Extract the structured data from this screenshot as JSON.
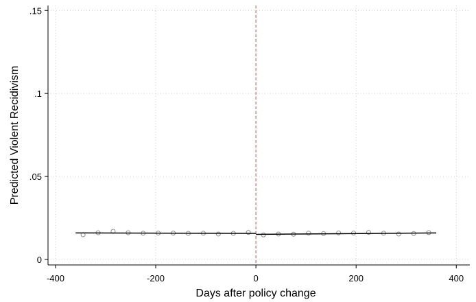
{
  "chart_data": {
    "type": "scatter",
    "x_label": "Days after policy change",
    "y_label": "Predicted Violent Recidivism",
    "xlim": [
      -415,
      427
    ],
    "ylim": [
      -0.0033,
      0.153
    ],
    "xticks": [
      -400,
      -200,
      0,
      200,
      400
    ],
    "yticks": [
      0,
      {
        "value": 0.05,
        "label": ".05"
      },
      {
        "value": 0.1,
        "label": ".1"
      },
      {
        "value": 0.15,
        "label": ".15"
      }
    ],
    "grid": true,
    "vline": {
      "x": 0,
      "color": "#c0504d"
    },
    "series": [
      {
        "type": "scatter",
        "color": "#8c8c8c",
        "x": [
          -345,
          -315,
          -285,
          -255,
          -225,
          -195,
          -165,
          -135,
          -105,
          -75,
          -45,
          -15,
          15,
          45,
          75,
          105,
          135,
          165,
          195,
          225,
          255,
          285,
          315,
          345
        ],
        "values": [
          0.0149,
          0.0161,
          0.0169,
          0.0161,
          0.0158,
          0.0159,
          0.0159,
          0.0157,
          0.0158,
          0.0153,
          0.0157,
          0.0163,
          0.0148,
          0.0153,
          0.0152,
          0.0159,
          0.0156,
          0.016,
          0.0159,
          0.0163,
          0.0158,
          0.0153,
          0.0156,
          0.0162
        ]
      },
      {
        "type": "line",
        "color": "#000000",
        "x": [
          -360,
          0
        ],
        "values": [
          0.016,
          0.0157
        ]
      },
      {
        "type": "line",
        "color": "#000000",
        "x": [
          0,
          360
        ],
        "values": [
          0.0151,
          0.016
        ]
      }
    ]
  }
}
